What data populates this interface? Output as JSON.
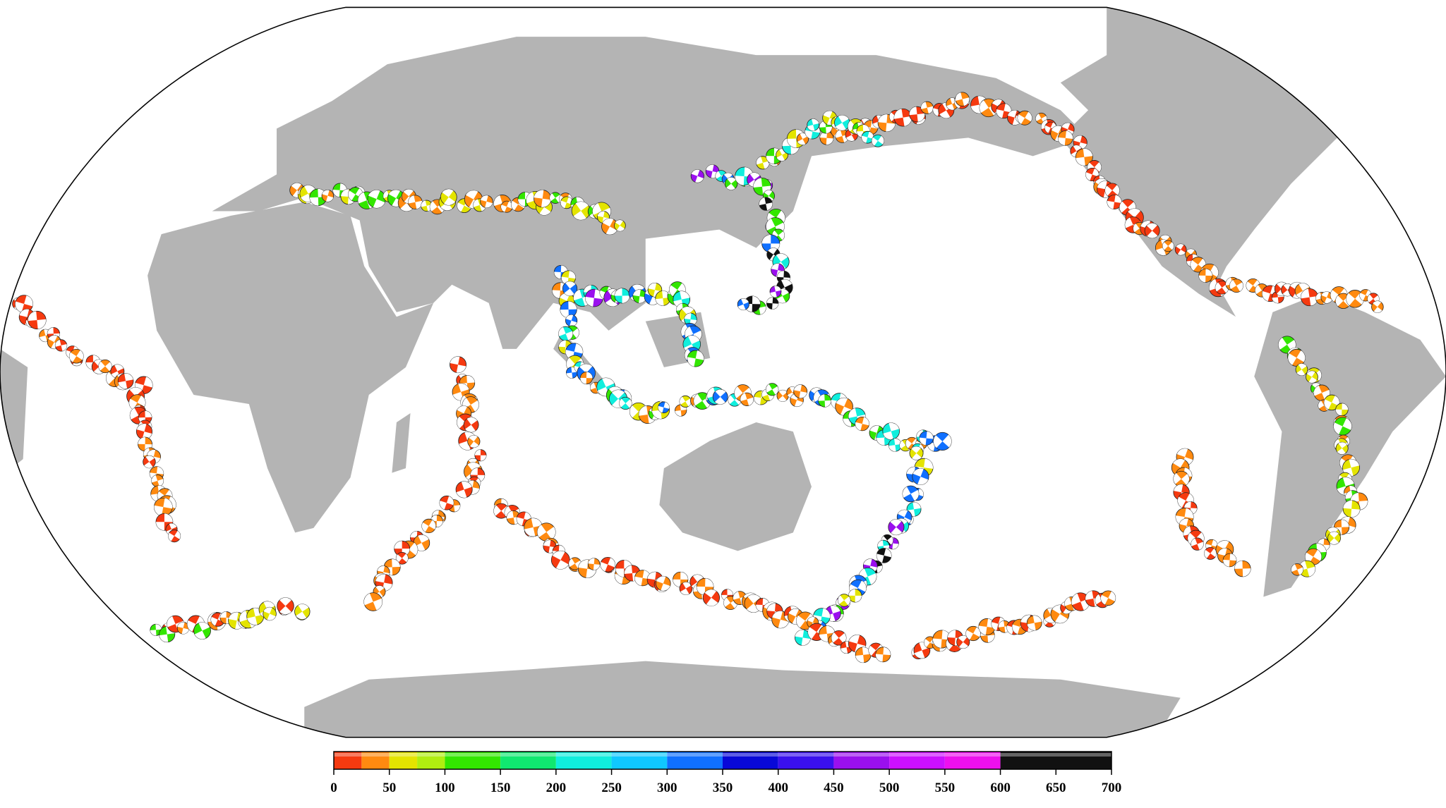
{
  "colorbar": {
    "range": [
      0,
      700
    ],
    "ticks": [
      0,
      50,
      100,
      150,
      200,
      250,
      300,
      350,
      400,
      450,
      500,
      550,
      600,
      650,
      700
    ],
    "segments": [
      {
        "from": 0,
        "to": 25,
        "color": "#f53a10"
      },
      {
        "from": 25,
        "to": 50,
        "color": "#ff8a10"
      },
      {
        "from": 50,
        "to": 75,
        "color": "#e4e400"
      },
      {
        "from": 75,
        "to": 100,
        "color": "#b0ee10"
      },
      {
        "from": 100,
        "to": 150,
        "color": "#33e600"
      },
      {
        "from": 150,
        "to": 200,
        "color": "#10e870"
      },
      {
        "from": 200,
        "to": 250,
        "color": "#10eedd"
      },
      {
        "from": 250,
        "to": 300,
        "color": "#10c8ff"
      },
      {
        "from": 300,
        "to": 350,
        "color": "#1070ff"
      },
      {
        "from": 350,
        "to": 400,
        "color": "#0808d8"
      },
      {
        "from": 400,
        "to": 450,
        "color": "#3a10ee"
      },
      {
        "from": 450,
        "to": 500,
        "color": "#9a10ee"
      },
      {
        "from": 500,
        "to": 550,
        "color": "#cc10ff"
      },
      {
        "from": 550,
        "to": 600,
        "color": "#ee10ee"
      },
      {
        "from": 600,
        "to": 700,
        "color": "#111111"
      }
    ]
  }
}
